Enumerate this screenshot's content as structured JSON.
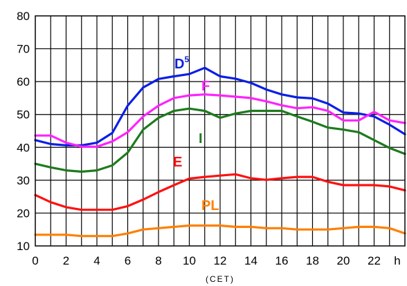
{
  "chart_data": {
    "type": "line",
    "xlabel": "(CET)",
    "x_unit": "h",
    "xlim": [
      0,
      24
    ],
    "ylim": [
      10,
      80
    ],
    "xticks": [
      0,
      2,
      4,
      6,
      8,
      10,
      12,
      14,
      16,
      18,
      20,
      22
    ],
    "yticks": [
      10,
      20,
      30,
      40,
      50,
      60,
      70,
      80
    ],
    "grid": true,
    "x": [
      0,
      1,
      2,
      3,
      4,
      5,
      6,
      7,
      8,
      9,
      10,
      11,
      12,
      13,
      14,
      15,
      16,
      17,
      18,
      19,
      20,
      21,
      22,
      23,
      24
    ],
    "series": [
      {
        "name": "D",
        "name_sup": "5",
        "color": "#0a1ee6",
        "values": [
          42.2,
          41.0,
          40.6,
          40.6,
          41.4,
          44.4,
          52.7,
          58.2,
          60.8,
          61.6,
          62.3,
          64.2,
          61.6,
          60.9,
          59.6,
          57.6,
          56.1,
          55.2,
          54.9,
          53.3,
          50.6,
          50.3,
          49.4,
          46.9,
          44.0
        ]
      },
      {
        "name": "F",
        "color": "#ff22ff",
        "values": [
          43.6,
          43.6,
          41.4,
          40.2,
          40.2,
          41.8,
          44.6,
          49.4,
          52.7,
          55.0,
          55.8,
          56.1,
          55.8,
          55.4,
          55.0,
          54.0,
          52.8,
          51.9,
          52.2,
          51.1,
          48.2,
          48.2,
          50.8,
          48.2,
          47.4
        ]
      },
      {
        "name": "I",
        "color": "#1e7a1e",
        "values": [
          35.0,
          33.9,
          33.0,
          32.6,
          33.0,
          34.5,
          38.4,
          45.4,
          49.0,
          51.1,
          51.8,
          51.1,
          49.0,
          50.3,
          51.1,
          51.1,
          51.1,
          49.4,
          47.8,
          46.0,
          45.4,
          44.6,
          42.2,
          39.8,
          38.0
        ]
      },
      {
        "name": "E",
        "color": "#ff1010",
        "values": [
          25.5,
          23.3,
          21.8,
          21.0,
          21.0,
          21.0,
          22.1,
          24.1,
          26.4,
          28.5,
          30.5,
          31.0,
          31.4,
          31.8,
          30.6,
          30.1,
          30.6,
          31.0,
          31.0,
          29.5,
          28.5,
          28.5,
          28.5,
          28.1,
          26.9
        ]
      },
      {
        "name": "PL",
        "color": "#ff7f00",
        "values": [
          13.4,
          13.4,
          13.4,
          13.0,
          13.0,
          13.0,
          13.8,
          15.0,
          15.4,
          15.8,
          16.2,
          16.2,
          16.2,
          15.8,
          15.8,
          15.4,
          15.4,
          15.0,
          15.0,
          15.0,
          15.4,
          15.8,
          15.8,
          15.4,
          13.8
        ]
      }
    ]
  }
}
